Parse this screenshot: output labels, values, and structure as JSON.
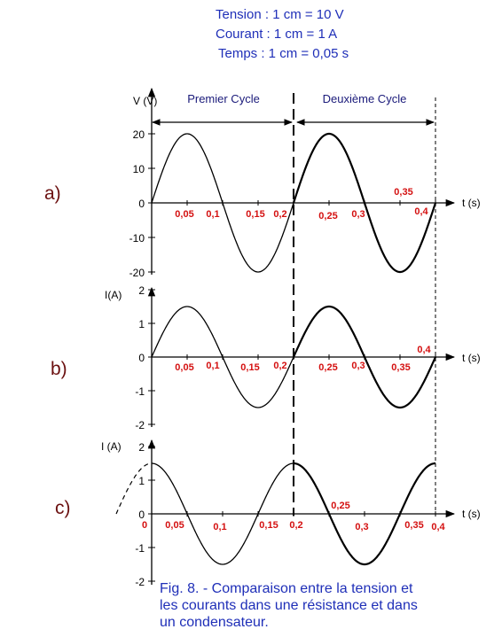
{
  "header": {
    "line1": "Tension : 1 cm = 10 V",
    "line2": "Courant : 1 cm = 1 A",
    "line3": "Temps : 1 cm = 0,05 s"
  },
  "cycles": {
    "first": "Premier Cycle",
    "second": "Deuxième Cycle"
  },
  "panels": {
    "a": "a)",
    "b": "b)",
    "c": "c)"
  },
  "caption": {
    "line1": "Fig. 8. - Comparaison entre la tension et",
    "line2": "les courants dans une résistance et dans",
    "line3": "un condensateur."
  },
  "colors": {
    "header_text": "#1f2fb8",
    "tick_labels_red": "#d41010",
    "panel_labels": "#6b1010",
    "curves": "#000000"
  },
  "chart_data": [
    {
      "type": "line",
      "name": "a",
      "ylabel": "V (V)",
      "xlabel": "t (s)",
      "xlim": [
        0,
        0.4
      ],
      "ylim": [
        -20,
        20
      ],
      "y_ticks": [
        "20",
        "10",
        "0",
        "-10",
        "-20"
      ],
      "x_tick_labels": [
        "0,05",
        "0,1",
        "0,15",
        "0,2",
        "0,25",
        "0,3",
        "0,35",
        "0,4"
      ],
      "series": [
        {
          "function": "sine",
          "amplitude": 20,
          "period": 0.2,
          "phase_deg": 0
        }
      ]
    },
    {
      "type": "line",
      "name": "b",
      "ylabel": "I(A)",
      "xlabel": "t (s)",
      "xlim": [
        0,
        0.4
      ],
      "ylim": [
        -2,
        2
      ],
      "y_ticks": [
        "2",
        "1",
        "0",
        "-1",
        "-2"
      ],
      "x_tick_labels": [
        "0,05",
        "0,1",
        "0,15",
        "0,2",
        "0,25",
        "0,3",
        "0,35",
        "0,4"
      ],
      "series": [
        {
          "function": "sine",
          "amplitude": 1.5,
          "period": 0.2,
          "phase_deg": 0
        }
      ]
    },
    {
      "type": "line",
      "name": "c",
      "ylabel": "I (A)",
      "xlabel": "t (s)",
      "xlim": [
        0,
        0.4
      ],
      "ylim": [
        -2,
        2
      ],
      "y_ticks": [
        "2",
        "1",
        "0",
        "-1",
        "-2"
      ],
      "x_tick_labels": [
        "0",
        "0,05",
        "0,1",
        "0,15",
        "0,2",
        "0,25",
        "0,3",
        "0,35",
        "0,4"
      ],
      "series": [
        {
          "function": "cosine",
          "amplitude": 1.5,
          "period": 0.2,
          "phase_deg": 90,
          "dashed_lead_in": true
        }
      ]
    }
  ]
}
